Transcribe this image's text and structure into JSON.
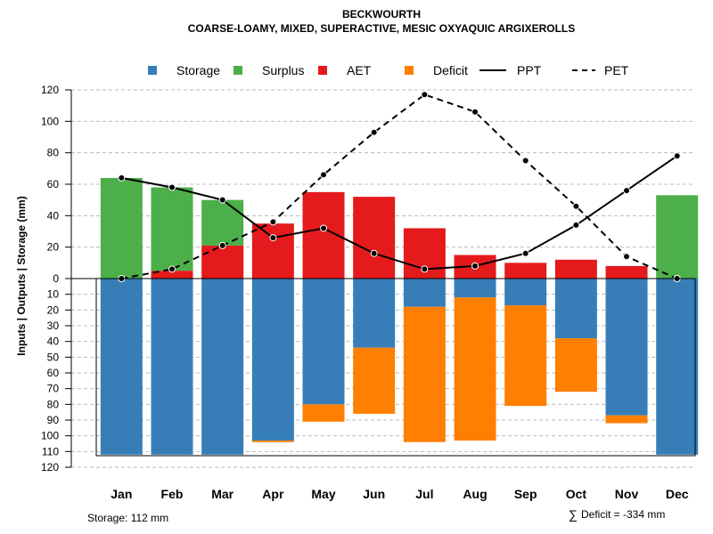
{
  "chart_data": {
    "type": "bar",
    "title": "BECKWOURTH",
    "subtitle": "COARSE-LOAMY, MIXED, SUPERACTIVE, MESIC OXYAQUIC ARGIXEROLLS",
    "ylabel": "Inputs | Outputs | Storage    (mm)",
    "categories": [
      "Jan",
      "Feb",
      "Mar",
      "Apr",
      "May",
      "Jun",
      "Jul",
      "Aug",
      "Sep",
      "Oct",
      "Nov",
      "Dec"
    ],
    "legend": {
      "storage": "Storage",
      "surplus": "Surplus",
      "aet": "AET",
      "deficit": "Deficit",
      "ppt": "PPT",
      "pet": "PET",
      "placement": "top"
    },
    "colors": {
      "storage": "#377EB8",
      "surplus": "#4DAF4A",
      "aet": "#E41A1C",
      "deficit": "#FF7F00",
      "ppt": "#000000",
      "pet": "#000000",
      "grid": "#bbbbbb"
    },
    "upper_panel": {
      "ylim": [
        0,
        120
      ],
      "ticks": [
        "0",
        "20",
        "40",
        "60",
        "80",
        "100",
        "120"
      ],
      "series": [
        {
          "key": "aet",
          "name": "AET",
          "values": [
            0,
            5,
            21,
            35,
            55,
            52,
            32,
            15,
            10,
            12,
            8,
            0
          ]
        },
        {
          "key": "surplus",
          "name": "Surplus",
          "values": [
            64,
            53,
            29,
            0,
            0,
            0,
            0,
            0,
            0,
            0,
            0,
            53
          ]
        }
      ],
      "lines": [
        {
          "key": "ppt",
          "name": "PPT",
          "style": "solid",
          "values": [
            64,
            58,
            50,
            26,
            32,
            16,
            6,
            8,
            16,
            34,
            56,
            78
          ]
        },
        {
          "key": "pet",
          "name": "PET",
          "style": "dashed",
          "values": [
            0,
            6,
            21,
            36,
            66,
            93,
            117,
            106,
            75,
            46,
            14,
            0
          ]
        }
      ]
    },
    "lower_panel": {
      "ylim": [
        0,
        120
      ],
      "ticks": [
        "10",
        "20",
        "30",
        "40",
        "50",
        "60",
        "70",
        "80",
        "90",
        "100",
        "110",
        "120"
      ],
      "series": [
        {
          "key": "storage",
          "name": "Storage",
          "values": [
            112,
            112,
            112,
            103,
            80,
            44,
            18,
            12,
            17,
            38,
            87,
            112
          ]
        },
        {
          "key": "deficit",
          "name": "Deficit",
          "values": [
            0,
            0,
            0,
            1,
            11,
            42,
            86,
            91,
            64,
            34,
            5,
            0
          ]
        }
      ]
    },
    "annotations": {
      "storage_text": "Storage: 112 mm",
      "deficit_symbol": "∑",
      "deficit_text": "Deficit = -334 mm"
    }
  }
}
